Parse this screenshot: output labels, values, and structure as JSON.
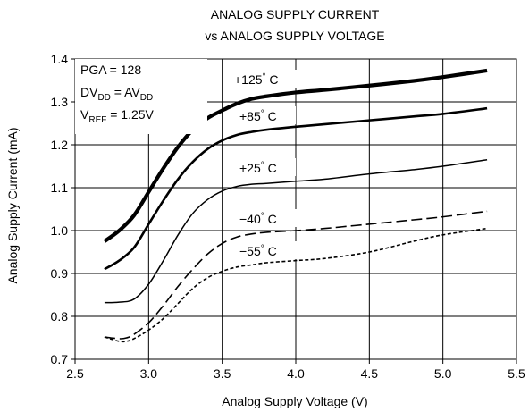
{
  "chart_data": {
    "type": "line",
    "title": [
      "ANALOG SUPPLY CURRENT",
      "vs ANALOG SUPPLY VOLTAGE"
    ],
    "xlabel": "Analog Supply Voltage (V)",
    "ylabel": "Analog Supply Current (mA)",
    "xlim": [
      2.5,
      5.5
    ],
    "ylim": [
      0.7,
      1.4
    ],
    "xticks": [
      2.5,
      3.0,
      3.5,
      4.0,
      4.5,
      5.0,
      5.5
    ],
    "xtick_labels": [
      "2.5",
      "3.0",
      "3.5",
      "4.0",
      "4.5",
      "5.0",
      "5.5"
    ],
    "yticks": [
      0.7,
      0.8,
      0.9,
      1.0,
      1.1,
      1.2,
      1.3,
      1.4
    ],
    "ytick_labels": [
      "0.7",
      "0.8",
      "0.9",
      "1.0",
      "1.1",
      "1.2",
      "1.3",
      "1.4"
    ],
    "grid": true,
    "conditions": {
      "pga": "PGA = 128",
      "dv": {
        "base1": "DV",
        "sub1": "DD",
        "mid": " = AV",
        "sub2": "DD"
      },
      "vref": {
        "base": "V",
        "sub": "REF",
        "rest": " = 1.25V"
      }
    },
    "series": [
      {
        "name": "+125°C",
        "label_parts": [
          "+125",
          "°",
          " C"
        ],
        "style": "thick",
        "color": "#000000",
        "x": [
          2.7,
          2.8,
          2.9,
          3.0,
          3.1,
          3.2,
          3.3,
          3.4,
          3.5,
          3.6,
          3.7,
          3.8,
          4.0,
          4.2,
          4.5,
          4.8,
          5.0,
          5.3
        ],
        "y": [
          0.975,
          1.0,
          1.035,
          1.09,
          1.145,
          1.195,
          1.235,
          1.262,
          1.28,
          1.296,
          1.307,
          1.313,
          1.322,
          1.328,
          1.338,
          1.349,
          1.358,
          1.373
        ]
      },
      {
        "name": "+85°C",
        "label_parts": [
          "+85",
          "°",
          " C"
        ],
        "style": "solid",
        "color": "#000000",
        "x": [
          2.7,
          2.8,
          2.9,
          3.0,
          3.1,
          3.2,
          3.3,
          3.4,
          3.5,
          3.6,
          3.7,
          3.8,
          4.0,
          4.2,
          4.5,
          4.8,
          5.0,
          5.3
        ],
        "y": [
          0.91,
          0.93,
          0.96,
          1.015,
          1.07,
          1.12,
          1.16,
          1.19,
          1.21,
          1.223,
          1.23,
          1.235,
          1.242,
          1.248,
          1.257,
          1.266,
          1.272,
          1.285
        ]
      },
      {
        "name": "+25°C",
        "label_parts": [
          "+25",
          "°",
          " C"
        ],
        "style": "thin",
        "color": "#000000",
        "x": [
          2.7,
          2.8,
          2.9,
          3.0,
          3.1,
          3.2,
          3.3,
          3.4,
          3.5,
          3.6,
          3.7,
          3.8,
          4.0,
          4.2,
          4.5,
          4.8,
          5.0,
          5.3
        ],
        "y": [
          0.832,
          0.833,
          0.84,
          0.875,
          0.93,
          0.99,
          1.04,
          1.072,
          1.092,
          1.103,
          1.108,
          1.11,
          1.115,
          1.12,
          1.132,
          1.142,
          1.15,
          1.165
        ]
      },
      {
        "name": "−40°C",
        "label_parts": [
          "−40",
          "°",
          " C"
        ],
        "style": "dashed",
        "color": "#000000",
        "x": [
          2.7,
          2.8,
          2.85,
          2.9,
          3.0,
          3.1,
          3.2,
          3.3,
          3.4,
          3.5,
          3.6,
          3.7,
          3.8,
          4.0,
          4.2,
          4.5,
          4.8,
          5.0,
          5.3
        ],
        "y": [
          0.752,
          0.748,
          0.75,
          0.758,
          0.785,
          0.825,
          0.87,
          0.91,
          0.945,
          0.97,
          0.985,
          0.992,
          0.996,
          1.0,
          1.005,
          1.015,
          1.025,
          1.032,
          1.045
        ]
      },
      {
        "name": "−55°C",
        "label_parts": [
          "−55",
          "°",
          " C"
        ],
        "style": "dotted",
        "color": "#000000",
        "x": [
          2.7,
          2.8,
          2.85,
          2.9,
          3.0,
          3.1,
          3.2,
          3.3,
          3.4,
          3.5,
          3.6,
          3.7,
          3.8,
          4.0,
          4.2,
          4.5,
          4.8,
          5.0,
          5.3
        ],
        "y": [
          0.752,
          0.742,
          0.742,
          0.748,
          0.768,
          0.795,
          0.83,
          0.865,
          0.89,
          0.905,
          0.915,
          0.92,
          0.925,
          0.93,
          0.935,
          0.95,
          0.975,
          0.99,
          1.005
        ]
      }
    ]
  }
}
